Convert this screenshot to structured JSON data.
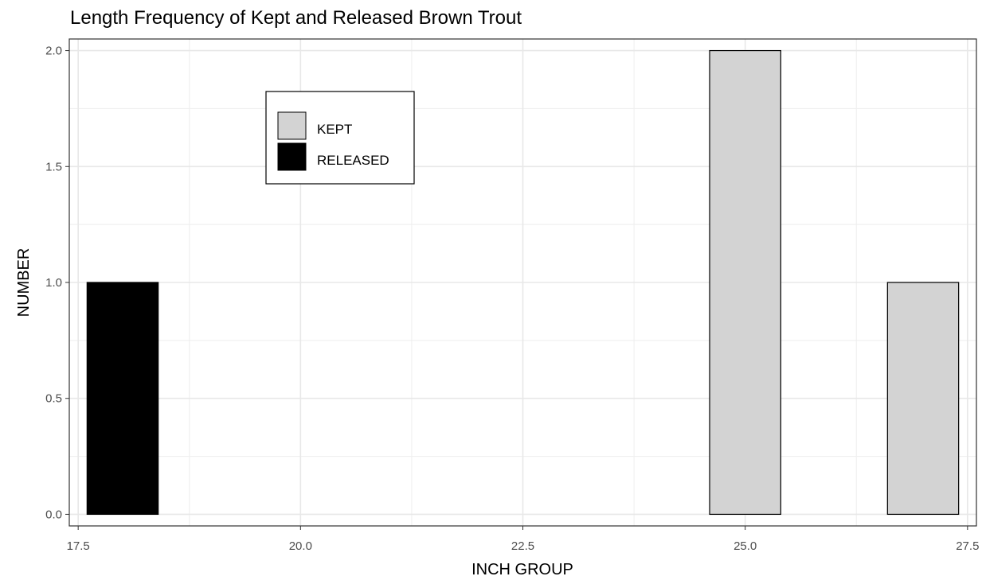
{
  "chart_data": {
    "type": "bar",
    "title": "Length Frequency of Kept and Released Brown Trout",
    "xlabel": "INCH GROUP",
    "ylabel": "NUMBER",
    "xlim": [
      17.4,
      27.6
    ],
    "ylim": [
      -0.05,
      2.05
    ],
    "xticks": [
      17.5,
      20.0,
      22.5,
      25.0,
      27.5
    ],
    "xtick_labels": [
      "17.5",
      "20.0",
      "22.5",
      "25.0",
      "27.5"
    ],
    "yticks": [
      0.0,
      0.5,
      1.0,
      1.5,
      2.0
    ],
    "ytick_labels": [
      "0.0",
      "0.5",
      "1.0",
      "1.5",
      "2.0"
    ],
    "bar_width": 0.8,
    "grid": true,
    "legend_position": "inside top-left",
    "series": [
      {
        "name": "KEPT",
        "color": "#d3d3d3",
        "points": [
          {
            "x": 25,
            "y": 2
          },
          {
            "x": 27,
            "y": 1
          }
        ]
      },
      {
        "name": "RELEASED",
        "color": "#000000",
        "points": [
          {
            "x": 18,
            "y": 1
          }
        ]
      }
    ]
  }
}
